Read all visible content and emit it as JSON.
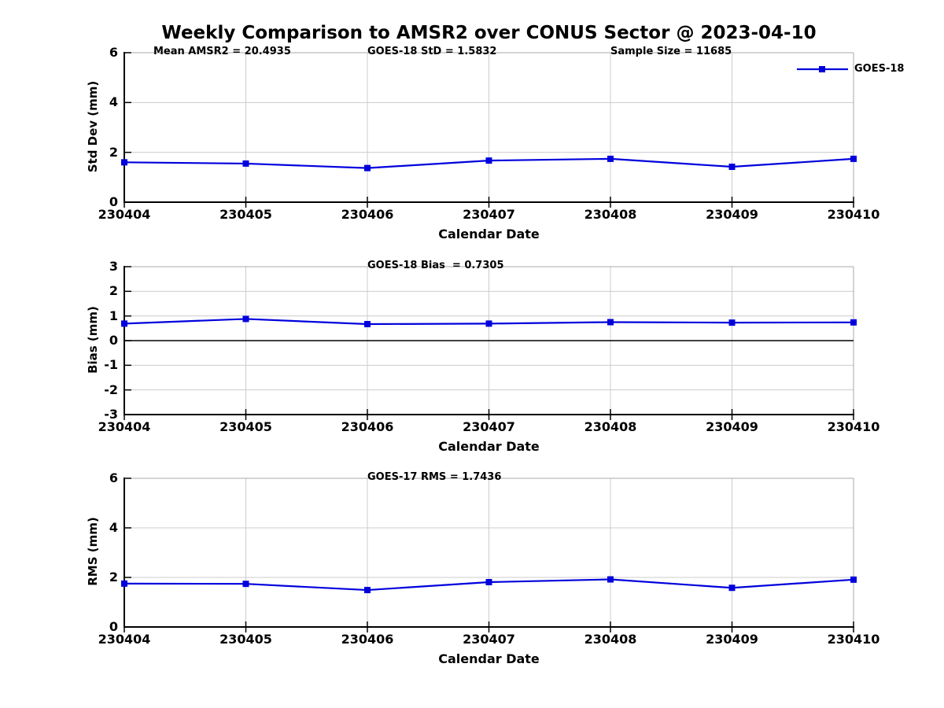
{
  "title": "Weekly Comparison to AMSR2 over CONUS Sector @ 2023-04-10",
  "legend": {
    "label": "GOES-18",
    "position": "top-right-outside",
    "marker": "square"
  },
  "colors": {
    "line": "#0000dd",
    "grid": "#cccccc",
    "box": "#aaaaaa",
    "axis": "#000000",
    "zero_line": "#000000",
    "text": "#000000",
    "background": "#ffffff"
  },
  "chart_data": [
    {
      "type": "line",
      "panel": "std-dev",
      "annotations": [
        "Mean AMSR2 = 20.4935",
        "GOES-18 StD = 1.5832",
        "Sample Size = 11685"
      ],
      "categories": [
        "230404",
        "230405",
        "230406",
        "230407",
        "230408",
        "230409",
        "230410"
      ],
      "series": [
        {
          "name": "GOES-18",
          "values": [
            1.6,
            1.55,
            1.37,
            1.67,
            1.74,
            1.42,
            1.74
          ]
        }
      ],
      "xlabel": "Calendar Date",
      "ylabel": "Std Dev (mm)",
      "ylim": [
        0,
        6
      ],
      "yticks": [
        0,
        2,
        4,
        6
      ],
      "grid": true,
      "marker": "square",
      "legend_shown": true
    },
    {
      "type": "line",
      "panel": "bias",
      "annotations": [
        "GOES-18 Bias  = 0.7305"
      ],
      "categories": [
        "230404",
        "230405",
        "230406",
        "230407",
        "230408",
        "230409",
        "230410"
      ],
      "series": [
        {
          "name": "GOES-18",
          "values": [
            0.69,
            0.88,
            0.67,
            0.69,
            0.75,
            0.73,
            0.74
          ]
        }
      ],
      "xlabel": "Calendar Date",
      "ylabel": "Bias (mm)",
      "ylim": [
        -3,
        3
      ],
      "yticks": [
        -3,
        -2,
        -1,
        0,
        1,
        2,
        3
      ],
      "zero_line": true,
      "grid": true,
      "marker": "square",
      "legend_shown": false
    },
    {
      "type": "line",
      "panel": "rms",
      "annotations": [
        "GOES-17 RMS = 1.7436"
      ],
      "categories": [
        "230404",
        "230405",
        "230406",
        "230407",
        "230408",
        "230409",
        "230410"
      ],
      "series": [
        {
          "name": "GOES-18",
          "values": [
            1.75,
            1.74,
            1.49,
            1.81,
            1.92,
            1.58,
            1.91
          ]
        }
      ],
      "xlabel": "Calendar Date",
      "ylabel": "RMS (mm)",
      "ylim": [
        0,
        6
      ],
      "yticks": [
        0,
        2,
        4,
        6
      ],
      "grid": true,
      "marker": "square",
      "legend_shown": false
    }
  ]
}
